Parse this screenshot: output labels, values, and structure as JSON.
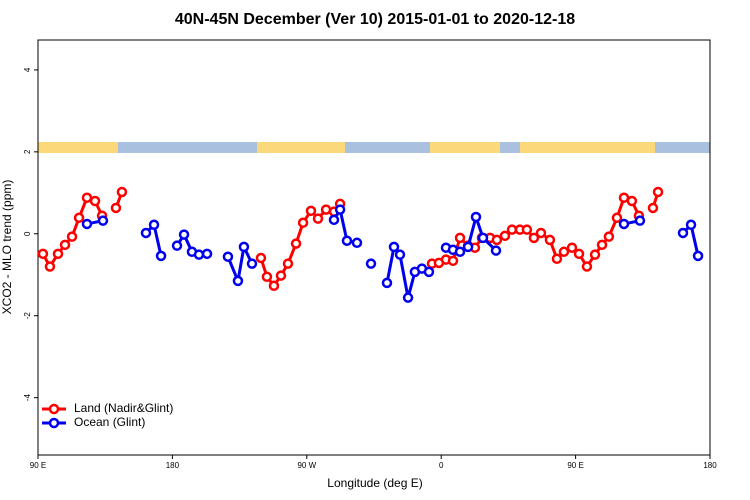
{
  "chart_data": {
    "type": "line",
    "title": "40N-45N December (Ver 10)   2015-01-01 to 2020-12-18",
    "xlabel": "Longitude (deg E)",
    "ylabel": "XCO2 - MLO trend (ppm)",
    "xlim": [
      90,
      540
    ],
    "xticks": [
      {
        "value": 90,
        "label": "90 E"
      },
      180,
      {
        "value": 270,
        "label": "90 W"
      },
      {
        "value": 360,
        "label": "0"
      },
      {
        "value": 450,
        "label": "90 E"
      },
      {
        "value": 540,
        "label": "180"
      }
    ],
    "ylim": [
      -5.4,
      4.73
    ],
    "yticks": [
      -4,
      -2,
      0,
      2,
      4
    ],
    "legend": "bottomleft",
    "series": [
      {
        "name": "Land (Nadir&Glint)",
        "color": "#ff0000",
        "x": [
          93.3,
          98.0,
          103.4,
          108.1,
          112.8,
          117.5,
          122.8,
          128.2,
          132.9,
          null,
          142.2,
          146.2,
          null,
          239.3,
          243.3,
          248.0,
          252.7,
          257.4,
          262.8,
          267.5,
          272.8,
          277.5,
          282.9,
          288.2,
          292.3,
          null,
          353.8,
          358.5,
          363.2,
          367.9,
          372.6,
          378.0,
          382.6,
          387.3,
          392.7,
          397.3,
          402.7,
          407.4,
          412.7,
          417.4,
          422.1,
          426.8,
          432.8,
          437.5,
          442.2,
          447.6,
          452.3,
          457.6,
          463.0,
          467.7,
          472.3,
          477.7,
          482.4,
          487.7,
          492.4,
          null,
          501.8,
          505.2
        ],
        "values": [
          -0.49,
          -0.8,
          -0.49,
          -0.27,
          -0.07,
          0.39,
          0.88,
          0.8,
          0.44,
          null,
          0.63,
          1.02,
          null,
          -0.59,
          -1.05,
          -1.27,
          -1.02,
          -0.73,
          -0.24,
          0.27,
          0.56,
          0.37,
          0.59,
          0.54,
          0.73,
          null,
          -0.73,
          -0.71,
          -0.63,
          -0.66,
          -0.1,
          -0.29,
          -0.34,
          -0.1,
          -0.1,
          -0.15,
          -0.05,
          0.1,
          0.1,
          0.1,
          -0.1,
          0.02,
          -0.15,
          -0.61,
          -0.44,
          -0.34,
          -0.49,
          -0.8,
          -0.51,
          -0.27,
          -0.07,
          0.39,
          0.88,
          0.8,
          0.44,
          null,
          0.63,
          1.02
        ]
      },
      {
        "name": "Ocean (Glint)",
        "color": "#0000ee",
        "x": [
          122.8,
          133.5,
          null,
          162.3,
          167.7,
          172.4,
          null,
          183.1,
          187.8,
          193.1,
          197.8,
          203.2,
          null,
          217.2,
          223.9,
          227.9,
          233.3,
          null,
          288.2,
          292.3,
          296.9,
          303.6,
          null,
          313.0,
          null,
          323.7,
          328.4,
          332.4,
          337.8,
          342.4,
          347.1,
          351.8,
          null,
          363.2,
          367.9,
          372.6,
          378.0,
          383.3,
          388.0,
          396.7,
          null,
          482.4,
          493.1,
          null,
          521.9,
          527.3,
          532.0
        ],
        "values": [
          0.24,
          0.32,
          null,
          0.02,
          0.22,
          -0.54,
          null,
          -0.29,
          -0.02,
          -0.44,
          -0.51,
          -0.49,
          null,
          -0.56,
          -1.15,
          -0.32,
          -0.73,
          null,
          0.34,
          0.59,
          -0.17,
          -0.22,
          null,
          -0.73,
          null,
          -1.2,
          -0.32,
          -0.51,
          -1.56,
          -0.93,
          -0.85,
          -0.93,
          null,
          -0.34,
          -0.39,
          -0.44,
          -0.32,
          0.41,
          -0.1,
          -0.41,
          null,
          0.24,
          0.32,
          null,
          0.02,
          0.22,
          -0.54
        ]
      }
    ]
  }
}
